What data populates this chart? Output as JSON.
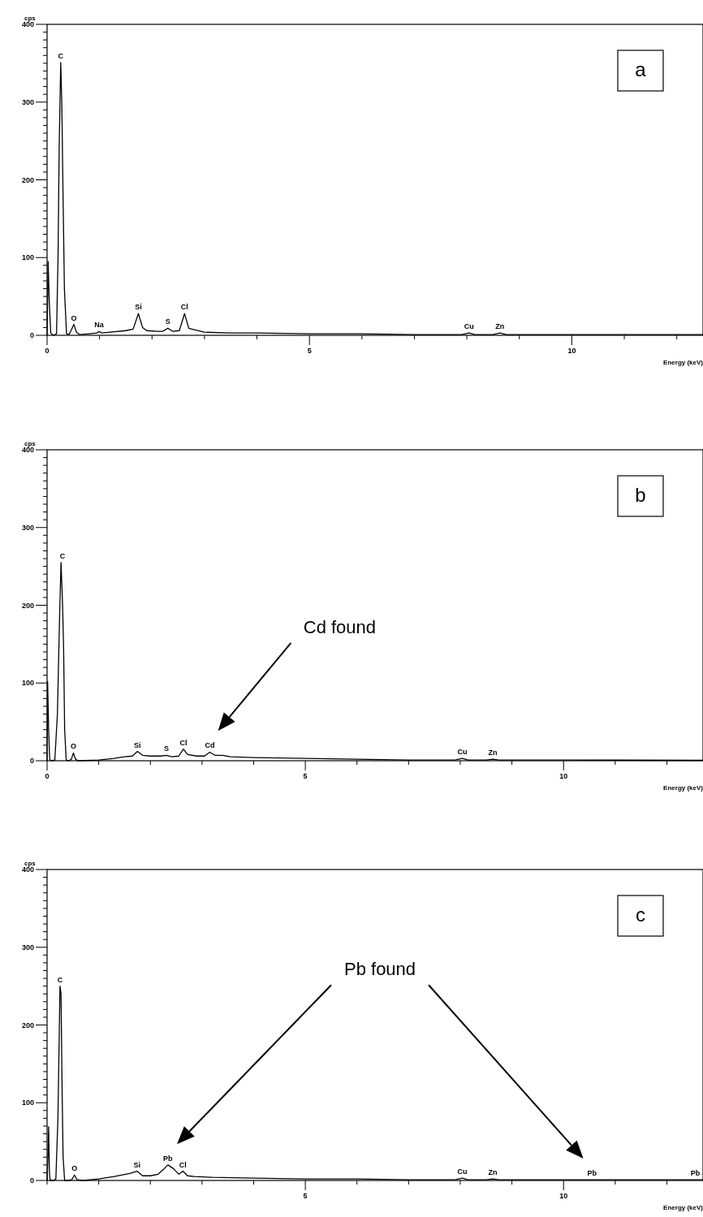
{
  "chart_data": [
    {
      "type": "line",
      "title": "a",
      "xlabel": "Energy (keV)",
      "ylabel": "cps",
      "color": "#000000",
      "xlim": [
        0,
        12.5
      ],
      "ylim": [
        0,
        400
      ],
      "xticks": [
        0,
        {
          "value": 1,
          "label": null
        },
        {
          "value": 2,
          "label": null
        },
        {
          "value": 3,
          "label": null
        },
        {
          "value": 4,
          "label": null
        },
        5,
        {
          "value": 6,
          "label": null
        },
        {
          "value": 7,
          "label": null
        },
        {
          "value": 8,
          "label": null
        },
        {
          "value": 9,
          "label": null
        },
        10,
        {
          "value": 11,
          "label": null
        },
        {
          "value": 12,
          "label": null
        }
      ],
      "yticks": [
        0,
        {
          "value": 10,
          "label": null
        },
        {
          "value": 20,
          "label": null
        },
        {
          "value": 30,
          "label": null
        },
        {
          "value": 40,
          "label": null
        },
        {
          "value": 50,
          "label": null
        },
        {
          "value": 60,
          "label": null
        },
        {
          "value": 70,
          "label": null
        },
        {
          "value": 80,
          "label": null
        },
        {
          "value": 90,
          "label": null
        },
        100,
        {
          "value": 110,
          "label": null
        },
        {
          "value": 120,
          "label": null
        },
        {
          "value": 130,
          "label": null
        },
        {
          "value": 140,
          "label": null
        },
        {
          "value": 150,
          "label": null
        },
        {
          "value": 160,
          "label": null
        },
        {
          "value": 170,
          "label": null
        },
        {
          "value": 180,
          "label": null
        },
        {
          "value": 190,
          "label": null
        },
        200,
        {
          "value": 210,
          "label": null
        },
        {
          "value": 220,
          "label": null
        },
        {
          "value": 230,
          "label": null
        },
        {
          "value": 240,
          "label": null
        },
        {
          "value": 250,
          "label": null
        },
        {
          "value": 260,
          "label": null
        },
        {
          "value": 270,
          "label": null
        },
        {
          "value": 280,
          "label": null
        },
        {
          "value": 290,
          "label": null
        },
        300,
        {
          "value": 310,
          "label": null
        },
        {
          "value": 320,
          "label": null
        },
        {
          "value": 330,
          "label": null
        },
        {
          "value": 340,
          "label": null
        },
        {
          "value": 350,
          "label": null
        },
        {
          "value": 360,
          "label": null
        },
        {
          "value": 370,
          "label": null
        },
        {
          "value": 380,
          "label": null
        },
        {
          "value": 390,
          "label": null
        },
        400
      ],
      "x": [
        0,
        0.02,
        0.04,
        0.07,
        0.12,
        0.18,
        0.21,
        0.23,
        0.26,
        0.28,
        0.3,
        0.33,
        0.37,
        0.42,
        0.47,
        0.51,
        0.56,
        0.62,
        0.8,
        0.95,
        0.99,
        1.04,
        1.2,
        1.5,
        1.64,
        1.74,
        1.82,
        1.9,
        2.1,
        2.2,
        2.3,
        2.4,
        2.52,
        2.62,
        2.7,
        2.82,
        3,
        3.5,
        4,
        5,
        6,
        7,
        7.9,
        8.04,
        8.15,
        8.5,
        8.63,
        8.75,
        10,
        12.5
      ],
      "values": [
        0,
        95,
        45,
        3,
        0,
        2,
        105,
        240,
        351,
        300,
        200,
        60,
        2,
        1,
        8,
        14,
        4,
        1,
        2,
        3,
        5,
        3,
        4,
        6,
        8,
        28,
        10,
        6,
        5,
        5,
        9,
        5,
        6,
        28,
        9,
        7,
        4,
        3,
        3,
        2,
        2,
        1,
        1,
        3,
        1,
        1,
        3,
        1,
        1,
        1
      ],
      "annotations": [
        {
          "text": "C",
          "x": 0.26,
          "y": 351
        },
        {
          "text": "O",
          "x": 0.51,
          "y": 14
        },
        {
          "text": "Na",
          "x": 0.99,
          "y": 5
        },
        {
          "text": "Si",
          "x": 1.74,
          "y": 28
        },
        {
          "text": "S",
          "x": 2.3,
          "y": 9
        },
        {
          "text": "Cl",
          "x": 2.62,
          "y": 28
        },
        {
          "text": "Cu",
          "x": 8.04,
          "y": 3
        },
        {
          "text": "Zn",
          "x": 8.63,
          "y": 3
        }
      ]
    },
    {
      "type": "line",
      "title": "b",
      "xlabel": "Energy (keV)",
      "ylabel": "cps",
      "color": "#000000",
      "xlim": [
        0,
        12.7
      ],
      "ylim": [
        0,
        400
      ],
      "xticks": [
        0,
        {
          "value": 1,
          "label": null
        },
        {
          "value": 2,
          "label": null
        },
        {
          "value": 3,
          "label": null
        },
        {
          "value": 4,
          "label": null
        },
        5,
        {
          "value": 6,
          "label": null
        },
        {
          "value": 7,
          "label": null
        },
        {
          "value": 8,
          "label": null
        },
        {
          "value": 9,
          "label": null
        },
        10,
        {
          "value": 11,
          "label": null
        },
        {
          "value": 12,
          "label": null
        }
      ],
      "yticks": [
        0,
        {
          "value": 10,
          "label": null
        },
        {
          "value": 20,
          "label": null
        },
        {
          "value": 30,
          "label": null
        },
        {
          "value": 40,
          "label": null
        },
        {
          "value": 50,
          "label": null
        },
        {
          "value": 60,
          "label": null
        },
        {
          "value": 70,
          "label": null
        },
        {
          "value": 80,
          "label": null
        },
        {
          "value": 90,
          "label": null
        },
        100,
        {
          "value": 110,
          "label": null
        },
        {
          "value": 120,
          "label": null
        },
        {
          "value": 130,
          "label": null
        },
        {
          "value": 140,
          "label": null
        },
        {
          "value": 150,
          "label": null
        },
        {
          "value": 160,
          "label": null
        },
        {
          "value": 170,
          "label": null
        },
        {
          "value": 180,
          "label": null
        },
        {
          "value": 190,
          "label": null
        },
        200,
        {
          "value": 210,
          "label": null
        },
        {
          "value": 220,
          "label": null
        },
        {
          "value": 230,
          "label": null
        },
        {
          "value": 240,
          "label": null
        },
        {
          "value": 250,
          "label": null
        },
        {
          "value": 260,
          "label": null
        },
        {
          "value": 270,
          "label": null
        },
        {
          "value": 280,
          "label": null
        },
        {
          "value": 290,
          "label": null
        },
        300,
        {
          "value": 310,
          "label": null
        },
        {
          "value": 320,
          "label": null
        },
        {
          "value": 330,
          "label": null
        },
        {
          "value": 340,
          "label": null
        },
        {
          "value": 350,
          "label": null
        },
        {
          "value": 360,
          "label": null
        },
        {
          "value": 370,
          "label": null
        },
        {
          "value": 380,
          "label": null
        },
        {
          "value": 390,
          "label": null
        },
        400
      ],
      "x": [
        0,
        0.01,
        0.03,
        0.05,
        0.08,
        0.15,
        0.2,
        0.24,
        0.27,
        0.3,
        0.32,
        0.34,
        0.37,
        0.42,
        0.47,
        0.51,
        0.55,
        0.6,
        1,
        1.3,
        1.5,
        1.65,
        1.75,
        1.85,
        2,
        2.2,
        2.31,
        2.42,
        2.55,
        2.64,
        2.72,
        2.9,
        3.05,
        3.15,
        3.25,
        3.4,
        3.55,
        4,
        5,
        6,
        7,
        7.9,
        8.04,
        8.15,
        8.5,
        8.63,
        8.75,
        10,
        12.7
      ],
      "values": [
        0,
        102,
        40,
        2,
        0,
        1,
        60,
        179,
        255,
        200,
        145,
        40,
        1,
        0,
        2,
        10,
        2,
        0,
        1,
        3,
        5,
        6,
        12,
        7,
        6,
        6,
        7,
        5,
        6,
        15,
        8,
        6,
        6,
        11,
        7,
        7,
        5,
        4,
        3,
        2,
        1,
        1,
        3,
        1,
        1,
        2,
        1,
        1,
        0.5
      ],
      "annotations": [
        {
          "text": "C",
          "x": 0.3,
          "y": 255
        },
        {
          "text": "O",
          "x": 0.51,
          "y": 10
        },
        {
          "text": "Si",
          "x": 1.75,
          "y": 12
        },
        {
          "text": "S",
          "x": 2.31,
          "y": 7
        },
        {
          "text": "Cl",
          "x": 2.64,
          "y": 15
        },
        {
          "text": "Cu",
          "x": 8.04,
          "y": 3
        },
        {
          "text": "Zn",
          "x": 8.63,
          "y": 2
        },
        "Cd found",
        {
          "text": "Cd",
          "x": 3.15,
          "y": 11
        }
      ]
    },
    {
      "type": "line",
      "title": "c",
      "xlabel": "Energy (keV)",
      "ylabel": "cps",
      "color": "#000000",
      "xlim": [
        0,
        12.7
      ],
      "ylim": [
        0,
        400
      ],
      "xticks": [
        {
          "value": 0,
          "label": null
        },
        {
          "value": 1,
          "label": null
        },
        {
          "value": 2,
          "label": null
        },
        {
          "value": 3,
          "label": null
        },
        {
          "value": 4,
          "label": null
        },
        5,
        {
          "value": 6,
          "label": null
        },
        {
          "value": 7,
          "label": null
        },
        {
          "value": 8,
          "label": null
        },
        {
          "value": 9,
          "label": null
        },
        10,
        {
          "value": 11,
          "label": null
        },
        {
          "value": 12,
          "label": null
        }
      ],
      "yticks": [
        0,
        {
          "value": 10,
          "label": null
        },
        {
          "value": 20,
          "label": null
        },
        {
          "value": 30,
          "label": null
        },
        {
          "value": 40,
          "label": null
        },
        {
          "value": 50,
          "label": null
        },
        {
          "value": 60,
          "label": null
        },
        {
          "value": 70,
          "label": null
        },
        {
          "value": 80,
          "label": null
        },
        {
          "value": 90,
          "label": null
        },
        100,
        {
          "value": 110,
          "label": null
        },
        {
          "value": 120,
          "label": null
        },
        {
          "value": 130,
          "label": null
        },
        {
          "value": 140,
          "label": null
        },
        {
          "value": 150,
          "label": null
        },
        {
          "value": 160,
          "label": null
        },
        {
          "value": 170,
          "label": null
        },
        {
          "value": 180,
          "label": null
        },
        {
          "value": 190,
          "label": null
        },
        200,
        {
          "value": 210,
          "label": null
        },
        {
          "value": 220,
          "label": null
        },
        {
          "value": 230,
          "label": null
        },
        {
          "value": 240,
          "label": null
        },
        {
          "value": 250,
          "label": null
        },
        {
          "value": 260,
          "label": null
        },
        {
          "value": 270,
          "label": null
        },
        {
          "value": 280,
          "label": null
        },
        {
          "value": 290,
          "label": null
        },
        300,
        {
          "value": 310,
          "label": null
        },
        {
          "value": 320,
          "label": null
        },
        {
          "value": 330,
          "label": null
        },
        {
          "value": 340,
          "label": null
        },
        {
          "value": 350,
          "label": null
        },
        {
          "value": 360,
          "label": null
        },
        {
          "value": 370,
          "label": null
        },
        {
          "value": 380,
          "label": null
        },
        {
          "value": 390,
          "label": null
        },
        400
      ],
      "x": [
        0,
        0.02,
        0.03,
        0.045,
        0.06,
        0.08,
        0.12,
        0.17,
        0.21,
        0.23,
        0.25,
        0.27,
        0.29,
        0.31,
        0.34,
        0.4,
        0.48,
        0.53,
        0.58,
        0.7,
        1,
        1.3,
        1.6,
        1.74,
        1.85,
        2,
        2.15,
        2.25,
        2.34,
        2.45,
        2.55,
        2.63,
        2.72,
        2.85,
        3.2,
        4,
        5,
        6,
        7,
        7.9,
        8.04,
        8.15,
        8.5,
        8.63,
        8.75,
        10,
        10.55,
        11,
        12.7
      ],
      "values": [
        0,
        37,
        69,
        10,
        0,
        0,
        0,
        2,
        80,
        164,
        250,
        240,
        120,
        30,
        0,
        0,
        1,
        7,
        1,
        0,
        2,
        5,
        9,
        12,
        6,
        6,
        8,
        14,
        20,
        15,
        8,
        12,
        6,
        5,
        4,
        3,
        2,
        2,
        1,
        1,
        3,
        1,
        1,
        2,
        1,
        1,
        1,
        1,
        1
      ],
      "annotations": [
        {
          "text": "C",
          "x": 0.25,
          "y": 250
        },
        {
          "text": "O",
          "x": 0.53,
          "y": 7
        },
        {
          "text": "Si",
          "x": 1.74,
          "y": 12
        },
        {
          "text": "Cl",
          "x": 2.63,
          "y": 12
        },
        {
          "text": "Cu",
          "x": 8.04,
          "y": 3
        },
        {
          "text": "Zn",
          "x": 8.63,
          "y": 2
        },
        {
          "text": "Pb",
          "x": 12.55,
          "y": 1
        },
        "Pb found",
        {
          "text": "Pb",
          "x": 2.34,
          "y": 20
        },
        {
          "text": "Pb",
          "x": 10.55,
          "y": 1
        }
      ]
    }
  ]
}
